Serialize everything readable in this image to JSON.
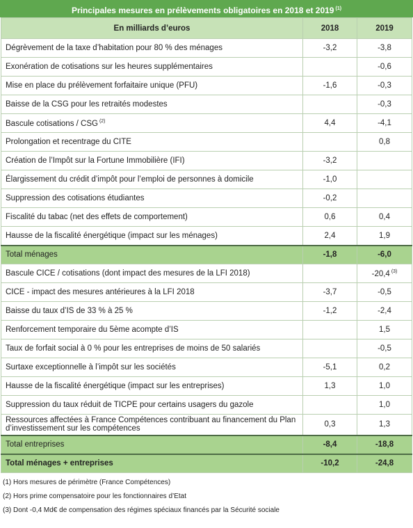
{
  "title": "Principales mesures en prélèvements obligatoires en 2018 et 2019",
  "title_note": "(1)",
  "header": {
    "label": "En milliards d’euros",
    "col1": "2018",
    "col2": "2019"
  },
  "sections": [
    {
      "rows": [
        {
          "label": "Dégrèvement de la taxe d’habitation pour 80 % des ménages",
          "v2018": "-3,2",
          "v2019": "-3,8"
        },
        {
          "label": "Exonération de cotisations sur les heures supplémentaires",
          "v2018": null,
          "v2019": "-0,6"
        },
        {
          "label": "Mise en place du prélèvement forfaitaire unique (PFU)",
          "v2018": "-1,6",
          "v2019": "-0,3"
        },
        {
          "label": "Baisse de la CSG pour les retraités modestes",
          "v2018": null,
          "v2019": "-0,3"
        },
        {
          "label": "Bascule cotisations / CSG",
          "note": "(2)",
          "v2018": "4,4",
          "v2019": "-4,1"
        },
        {
          "label": "Prolongation et recentrage du CITE",
          "v2018": null,
          "v2019": "0,8"
        },
        {
          "label": "Création de l’Impôt sur la Fortune Immobilière (IFI)",
          "v2018": "-3,2",
          "v2019": null
        },
        {
          "label": "Élargissement du crédit d’impôt pour l’emploi de personnes à domicile",
          "v2018": "-1,0",
          "v2019": null
        },
        {
          "label": "Suppression des cotisations étudiantes",
          "v2018": "-0,2",
          "v2019": null
        },
        {
          "label": "Fiscalité du tabac (net des effets de comportement)",
          "v2018": "0,6",
          "v2019": "0,4"
        },
        {
          "label": "Hausse de la fiscalité énergétique (impact sur les ménages)",
          "v2018": "2,4",
          "v2019": "1,9"
        }
      ],
      "total": {
        "label": "Total ménages",
        "v2018": "-1,8",
        "v2019": "-6,0"
      }
    },
    {
      "rows": [
        {
          "label": "Bascule CICE / cotisations (dont impact des mesures de la LFI 2018)",
          "v2018": null,
          "v2019": "-20,4",
          "note": "(3)"
        },
        {
          "label": "CICE - impact des mesures antérieures à la LFI 2018",
          "v2018": "-3,7",
          "v2019": "-0,5"
        },
        {
          "label": "Baisse du taux d’IS de 33 % à 25 %",
          "v2018": "-1,2",
          "v2019": "-2,4"
        },
        {
          "label": "Renforcement temporaire du 5ème acompte d’IS",
          "v2018": null,
          "v2019": "1,5"
        },
        {
          "label": "Taux de forfait social à 0 % pour les entreprises de moins de 50 salariés",
          "v2018": null,
          "v2019": "-0,5"
        },
        {
          "label": "Surtaxe exceptionnelle à l’impôt sur les sociétés",
          "v2018": "-5,1",
          "v2019": "0,2"
        },
        {
          "label": "Hausse de la fiscalité énergétique (impact sur les entreprises)",
          "v2018": "1,3",
          "v2019": "1,0"
        },
        {
          "label": "Suppression du taux réduit de TICPE pour certains usagers du gazole",
          "v2018": null,
          "v2019": "1,0"
        },
        {
          "label": "Ressources affectées à France Compétences contribuant au financement du Plan d’investissement sur les compétences",
          "v2018": "0,3",
          "v2019": "1,3"
        }
      ],
      "total": {
        "label": "Total entreprises",
        "v2018": "-8,4",
        "v2019": "-18,8"
      }
    }
  ],
  "grand_total": {
    "label": "Total ménages + entreprises",
    "v2018": "-10,2",
    "v2019": "-24,8"
  },
  "notes": [
    "(1) Hors mesures de périmètre (France Compétences)",
    "(2) Hors prime compensatoire pour les fonctionnaires d’Etat",
    "(3) Dont -0,4 Md€ de compensation des régimes spéciaux financés par la Sécurité sociale"
  ]
}
